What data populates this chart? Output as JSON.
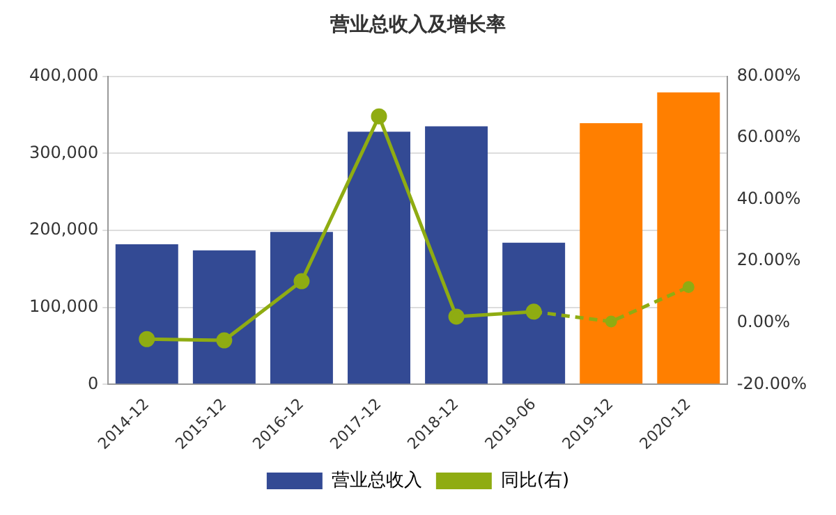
{
  "chart_data": {
    "type": "bar",
    "title": "营业总收入及增长率",
    "categories": [
      "2014-12",
      "2015-12",
      "2016-12",
      "2017-12",
      "2018-12",
      "2019-06",
      "2019-12",
      "2020-12"
    ],
    "series": [
      {
        "name": "营业总收入",
        "color": "#334a94",
        "colors": [
          "#334a94",
          "#334a94",
          "#334a94",
          "#334a94",
          "#334a94",
          "#334a94",
          "#ff7f00",
          "#ff7f00"
        ],
        "values": [
          182000,
          174000,
          198000,
          328000,
          335000,
          184000,
          339000,
          379000
        ]
      },
      {
        "name": "同比(右)",
        "type": "line",
        "axis": "y2",
        "color": "#8fac12",
        "line_style": "solid",
        "values": [
          -5.3,
          -5.7,
          13.5,
          67,
          2.0,
          3.6,
          null,
          null
        ]
      },
      {
        "type": "line",
        "axis": "y2",
        "color": "#8fac12",
        "line_style": "dashed",
        "values": [
          null,
          null,
          null,
          null,
          null,
          3.6,
          0.4,
          11.6
        ]
      }
    ],
    "ylim": [
      0,
      400000
    ],
    "yticks": [
      {
        "value": 0,
        "label": "0"
      },
      {
        "value": 100000,
        "label": "100,000"
      },
      {
        "value": 200000,
        "label": "200,000"
      },
      {
        "value": 300000,
        "label": "300,000"
      },
      {
        "value": 400000,
        "label": "400,000"
      }
    ],
    "y2lim": [
      -20,
      80
    ],
    "y2ticks": [
      {
        "value": -20,
        "label": "-20.00%"
      },
      {
        "value": 0,
        "label": "0.00%"
      },
      {
        "value": 20,
        "label": "20.00%"
      },
      {
        "value": 40,
        "label": "40.00%"
      },
      {
        "value": 60,
        "label": "60.00%"
      },
      {
        "value": 80,
        "label": "80.00%"
      }
    ],
    "grid": "y",
    "legend": "bottom",
    "marker": "circle"
  }
}
